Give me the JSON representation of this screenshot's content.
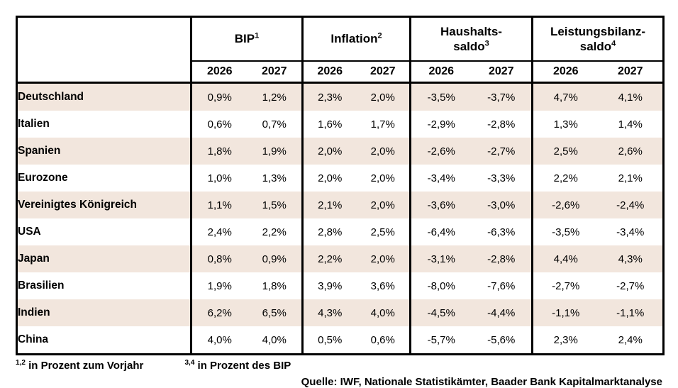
{
  "table": {
    "groups": [
      {
        "line1": "BIP",
        "line2": "",
        "sup": "1"
      },
      {
        "line1": "Inflation",
        "line2": "",
        "sup": "2"
      },
      {
        "line1": "Haushalts-",
        "line2": "saldo",
        "sup": "3"
      },
      {
        "line1": "Leistungsbilanz-",
        "line2": "saldo",
        "sup": "4"
      }
    ],
    "years": [
      "2026",
      "2027"
    ],
    "rows": [
      {
        "country": "Deutschland",
        "values": [
          "0,9%",
          "1,2%",
          "2,3%",
          "2,0%",
          "-3,5%",
          "-3,7%",
          "4,7%",
          "4,1%"
        ]
      },
      {
        "country": "Italien",
        "values": [
          "0,6%",
          "0,7%",
          "1,6%",
          "1,7%",
          "-2,9%",
          "-2,8%",
          "1,3%",
          "1,4%"
        ]
      },
      {
        "country": "Spanien",
        "values": [
          "1,8%",
          "1,9%",
          "2,0%",
          "2,0%",
          "-2,6%",
          "-2,7%",
          "2,5%",
          "2,6%"
        ]
      },
      {
        "country": "Eurozone",
        "values": [
          "1,0%",
          "1,3%",
          "2,0%",
          "2,0%",
          "-3,4%",
          "-3,3%",
          "2,2%",
          "2,1%"
        ]
      },
      {
        "country": "Vereinigtes Königreich",
        "values": [
          "1,1%",
          "1,5%",
          "2,1%",
          "2,0%",
          "-3,6%",
          "-3,0%",
          "-2,6%",
          "-2,4%"
        ]
      },
      {
        "country": "USA",
        "values": [
          "2,4%",
          "2,2%",
          "2,8%",
          "2,5%",
          "-6,4%",
          "-6,3%",
          "-3,5%",
          "-3,4%"
        ]
      },
      {
        "country": "Japan",
        "values": [
          "0,8%",
          "0,9%",
          "2,2%",
          "2,0%",
          "-3,1%",
          "-2,8%",
          "4,4%",
          "4,3%"
        ]
      },
      {
        "country": "Brasilien",
        "values": [
          "1,9%",
          "1,8%",
          "3,9%",
          "3,6%",
          "-8,0%",
          "-7,6%",
          "-2,7%",
          "-2,7%"
        ]
      },
      {
        "country": "Indien",
        "values": [
          "6,2%",
          "6,5%",
          "4,3%",
          "4,0%",
          "-4,5%",
          "-4,4%",
          "-1,1%",
          "-1,1%"
        ]
      },
      {
        "country": "China",
        "values": [
          "4,0%",
          "4,0%",
          "0,5%",
          "0,6%",
          "-5,7%",
          "-5,6%",
          "2,3%",
          "2,4%"
        ]
      }
    ]
  },
  "footnotes": [
    {
      "sup": "1,2",
      "text": " in Prozent zum Vorjahr"
    },
    {
      "sup": "3,4",
      "text": " in Prozent des BIP"
    }
  ],
  "source": "Quelle: IWF, Nationale Statistikämter, Baader Bank Kapitalmarktanalyse",
  "colors": {
    "shaded_row": "#f2e6dd",
    "border": "#000000",
    "background": "#ffffff"
  }
}
